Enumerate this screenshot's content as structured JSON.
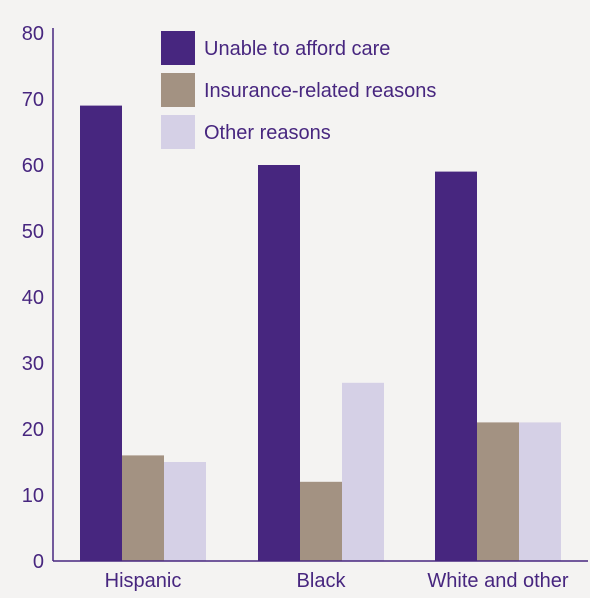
{
  "chart_data": {
    "type": "bar",
    "categories": [
      "Hispanic",
      "Black",
      "White and other"
    ],
    "series": [
      {
        "name": "Unable to afford care",
        "values": [
          69,
          60,
          59
        ],
        "color": "#47267f"
      },
      {
        "name": "Insurance-related reasons",
        "values": [
          16,
          12,
          21
        ],
        "color": "#a39282"
      },
      {
        "name": "Other reasons",
        "values": [
          15,
          27,
          21
        ],
        "color": "#d5d0e6"
      }
    ],
    "title": "",
    "xlabel": "",
    "ylabel": "",
    "ylim": [
      0,
      80
    ],
    "yticks": [
      0,
      10,
      20,
      30,
      40,
      50,
      60,
      70,
      80
    ],
    "grid": false,
    "legend_position": "top-right",
    "axis_color": "#47267f",
    "text_color": "#47267f",
    "background": "#f4f3f2"
  }
}
